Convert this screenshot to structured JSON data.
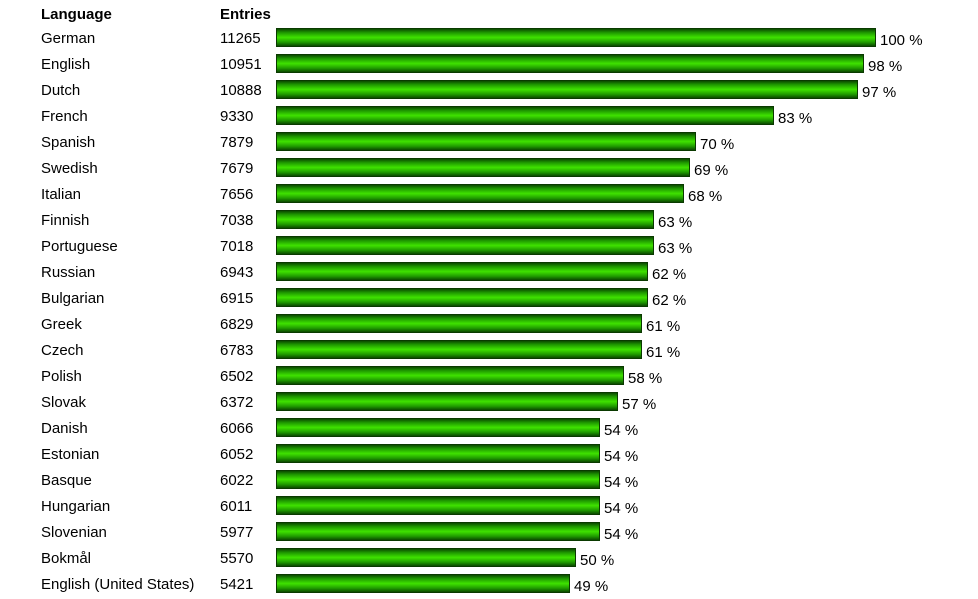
{
  "chart_data": {
    "type": "bar",
    "orientation": "horizontal",
    "columns": {
      "language": "Language",
      "entries": "Entries"
    },
    "series_color": "#33cc00",
    "xlim": [
      0,
      100
    ],
    "rows": [
      {
        "language": "German",
        "entries": "11265",
        "percent": 100,
        "percent_label": "100 %"
      },
      {
        "language": "English",
        "entries": "10951",
        "percent": 98,
        "percent_label": "98 %"
      },
      {
        "language": "Dutch",
        "entries": "10888",
        "percent": 97,
        "percent_label": "97 %"
      },
      {
        "language": "French",
        "entries": "9330",
        "percent": 83,
        "percent_label": "83 %"
      },
      {
        "language": "Spanish",
        "entries": "7879",
        "percent": 70,
        "percent_label": "70 %"
      },
      {
        "language": "Swedish",
        "entries": "7679",
        "percent": 69,
        "percent_label": "69 %"
      },
      {
        "language": "Italian",
        "entries": "7656",
        "percent": 68,
        "percent_label": "68 %"
      },
      {
        "language": "Finnish",
        "entries": "7038",
        "percent": 63,
        "percent_label": "63 %"
      },
      {
        "language": "Portuguese",
        "entries": "7018",
        "percent": 63,
        "percent_label": "63 %"
      },
      {
        "language": "Russian",
        "entries": "6943",
        "percent": 62,
        "percent_label": "62 %"
      },
      {
        "language": "Bulgarian",
        "entries": "6915",
        "percent": 62,
        "percent_label": "62 %"
      },
      {
        "language": "Greek",
        "entries": "6829",
        "percent": 61,
        "percent_label": "61 %"
      },
      {
        "language": "Czech",
        "entries": "6783",
        "percent": 61,
        "percent_label": "61 %"
      },
      {
        "language": "Polish",
        "entries": "6502",
        "percent": 58,
        "percent_label": "58 %"
      },
      {
        "language": "Slovak",
        "entries": "6372",
        "percent": 57,
        "percent_label": "57 %"
      },
      {
        "language": "Danish",
        "entries": "6066",
        "percent": 54,
        "percent_label": "54 %"
      },
      {
        "language": "Estonian",
        "entries": "6052",
        "percent": 54,
        "percent_label": "54 %"
      },
      {
        "language": "Basque",
        "entries": "6022",
        "percent": 54,
        "percent_label": "54 %"
      },
      {
        "language": "Hungarian",
        "entries": "6011",
        "percent": 54,
        "percent_label": "54 %"
      },
      {
        "language": "Slovenian",
        "entries": "5977",
        "percent": 54,
        "percent_label": "54 %"
      },
      {
        "language": "Bokmål",
        "entries": "5570",
        "percent": 50,
        "percent_label": "50 %"
      },
      {
        "language": "English (United States)",
        "entries": "5421",
        "percent": 49,
        "percent_label": "49 %"
      }
    ]
  }
}
